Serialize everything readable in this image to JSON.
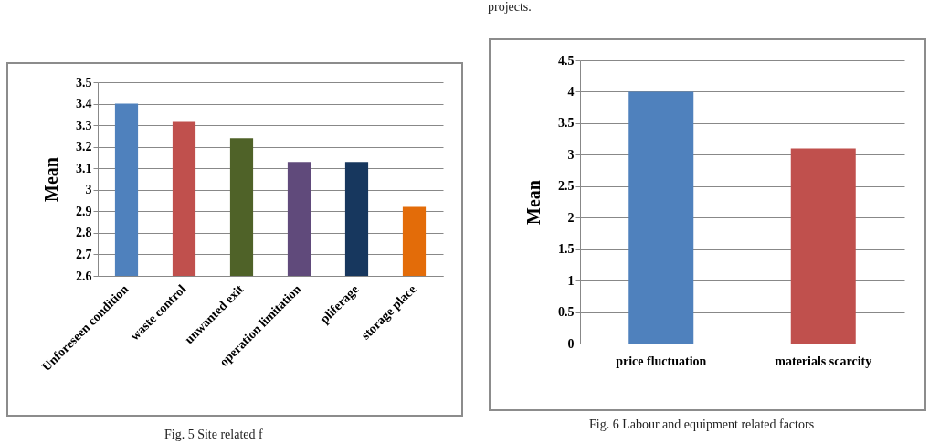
{
  "chart_data": [
    {
      "type": "bar",
      "ylabel": "Mean",
      "categories": [
        "Unforeseen condition",
        "waste control",
        "unwanted exit",
        "operation limitation",
        "pliferage",
        "storage place"
      ],
      "values": [
        3.4,
        3.32,
        3.24,
        3.13,
        3.13,
        2.92
      ],
      "colors": [
        "#4f81bd",
        "#c0504d",
        "#4f6228",
        "#604a7b",
        "#17375e",
        "#e36c09"
      ],
      "ylim": [
        2.6,
        3.5
      ],
      "yticks": [
        2.6,
        2.7,
        2.8,
        2.9,
        {
          "value": 3,
          "label": "3"
        },
        3.1,
        3.2,
        3.3,
        3.4,
        3.5
      ],
      "grid": "y",
      "annotations": [
        "Fig. 5 Site related f"
      ]
    },
    {
      "type": "bar",
      "ylabel": "Mean",
      "categories": [
        "price fluctuation",
        "materials scarcity"
      ],
      "values": [
        4,
        3.1
      ],
      "colors": [
        "#4f81bd",
        "#c0504d"
      ],
      "ylim": [
        0,
        4.5
      ],
      "yticks": [
        0,
        0.5,
        1,
        1.5,
        2,
        2.5,
        3,
        3.5,
        4,
        4.5
      ],
      "grid": "y",
      "annotations": [
        "projects.",
        "Fig. 6 Labour and equipment related factors"
      ]
    }
  ]
}
